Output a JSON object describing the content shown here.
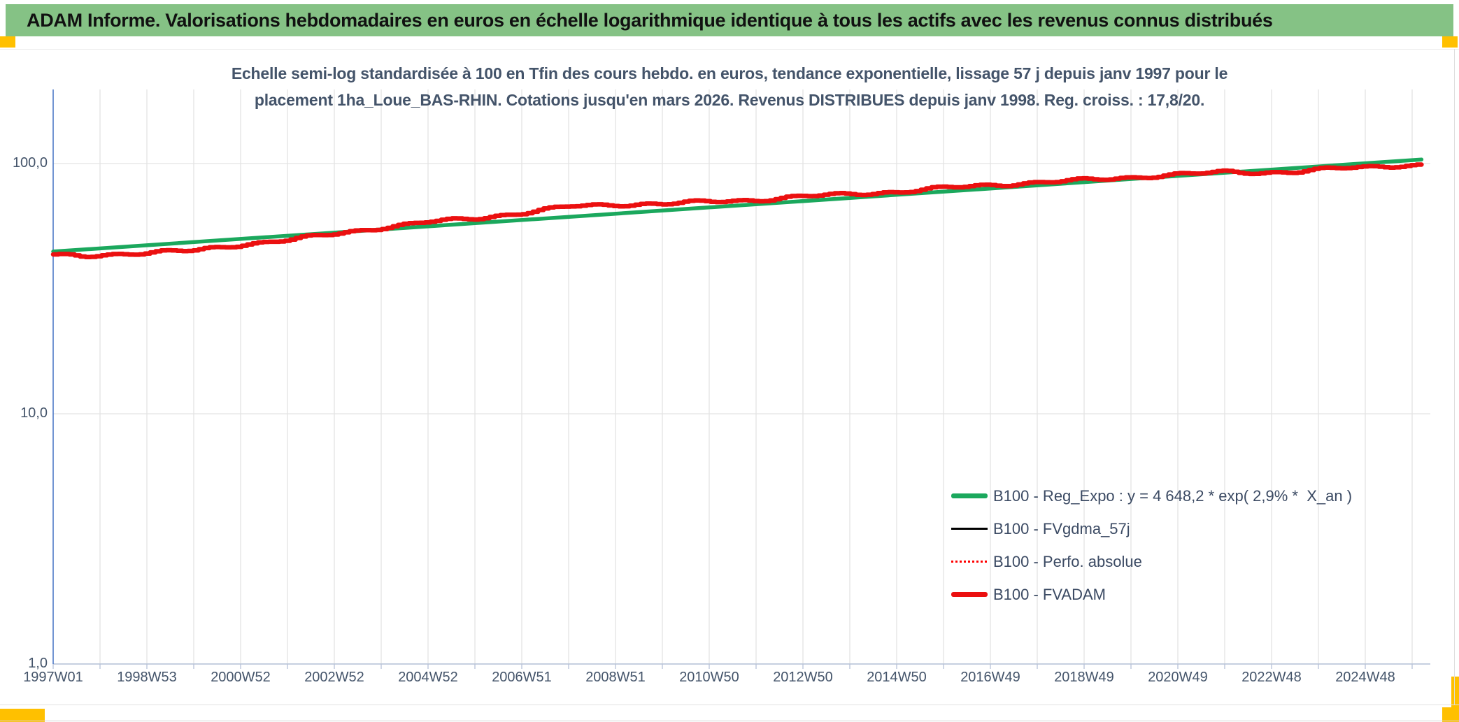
{
  "banner": {
    "title": "ADAM Informe. Valorisations hebdomadaires en euros en échelle logarithmique identique à tous les actifs avec les revenus connus distribués"
  },
  "chart": {
    "title_line1": "Echelle semi-log standardisée à 100 en Tfin des cours hebdo. en euros, tendance exponentielle, lissage 57 j depuis janv 1997 pour le",
    "title_line2": "placement 1ha_Loue_BAS-RHIN. Cotations jusqu'en mars 2026. Revenus DISTRIBUES depuis janv 1998. Reg. croiss. : 17,8/20.",
    "legend": [
      {
        "label": "B100 - Reg_Expo : y = 4 648,2 * exp( 2,9% *  X_an )",
        "color": "#1BA85D",
        "style": "thick-solid"
      },
      {
        "label": "B100 - FVgdma_57j",
        "color": "#000000",
        "style": "thin-solid"
      },
      {
        "label": "B100 - Perfo. absolue",
        "color": "#FF0000",
        "style": "thin-dotted"
      },
      {
        "label": "B100 - FVADAM",
        "color": "#EB1010",
        "style": "thick-solid"
      }
    ],
    "colors": {
      "banner_green": "#85C285",
      "accent_gold": "#FFC000",
      "text_blue_gray": "#44546A",
      "y_axis_line": "#4472C4",
      "x_axis_line": "#B6C1D8",
      "gridline": "#E3E3E3",
      "reg_expo_green": "#1BA85D",
      "fvadam_red": "#EB1010"
    }
  },
  "chart_data": {
    "type": "line",
    "title": "Echelle semi-log standardisée à 100 en Tfin des cours hebdo. en euros, tendance exponentielle, lissage 57 j depuis janv 1997 pour le placement 1ha_Loue_BAS-RHIN. Cotations jusqu'en mars 2026. Revenus DISTRIBUES depuis janv 1998. Reg. croiss. : 17,8/20.",
    "x_axis": {
      "type": "weekly-categories",
      "tick_labels": [
        "1997W01",
        "1998W53",
        "2000W52",
        "2002W52",
        "2004W52",
        "2006W51",
        "2008W51",
        "2010W50",
        "2012W50",
        "2014W50",
        "2016W49",
        "2018W49",
        "2020W49",
        "2022W48",
        "2024W48"
      ],
      "tick_years": [
        1997,
        1999,
        2001,
        2003,
        2005,
        2007,
        2009,
        2011,
        2013,
        2015,
        2017,
        2019,
        2021,
        2023,
        2025
      ],
      "span_years": [
        1997.0,
        2026.2
      ],
      "gridlines": "vertical, yearly"
    },
    "y_axis": {
      "scale": "log10",
      "ticks": [
        "1,0",
        "10,0",
        "100,0"
      ],
      "tick_values": [
        1,
        10,
        100
      ],
      "range": [
        1,
        200
      ],
      "gridlines": "horizontal, at decades"
    },
    "legend_position": "inside right, lower middle",
    "series": [
      {
        "name": "B100 - Reg_Expo : y = 4 648,2 * exp( 2,9% *  X_an )",
        "color": "#1BA85D",
        "line": "thick solid, straight in semi-log (exponential trend)",
        "years": [
          1997.0,
          2026.2
        ],
        "values": [
          44.5,
          103.8
        ]
      },
      {
        "name": "B100 - FVADAM",
        "color": "#EB1010",
        "line": "thick solid, weekly steps",
        "years": [
          1997,
          1997.6,
          1998,
          1999,
          2000,
          2001,
          2002,
          2003,
          2004,
          2005,
          2006,
          2007,
          2008,
          2009,
          2010,
          2011,
          2012,
          2013,
          2014,
          2015,
          2016,
          2017,
          2018,
          2019,
          2020,
          2021,
          2022,
          2022.8,
          2023.5,
          2024,
          2024.6,
          2025,
          2025.6,
          2026.2
        ],
        "values": [
          43.0,
          42.6,
          43.2,
          44.0,
          45.0,
          47.5,
          49.5,
          52.5,
          55.5,
          58.5,
          60.5,
          63.5,
          67.5,
          68.5,
          69.0,
          70.5,
          71.5,
          74.0,
          75.5,
          77.0,
          80.0,
          82.0,
          84.0,
          86.0,
          88.0,
          90.5,
          92.5,
          92.0,
          92.8,
          94.5,
          96.3,
          96.8,
          98.2,
          98.5
        ]
      },
      {
        "name": "B100 - FVgdma_57j",
        "color": "#000000",
        "line": "thin solid",
        "values_same_as": "B100 - FVADAM",
        "note": "visually hidden beneath the B100 - FVADAM curve"
      },
      {
        "name": "B100 - Perfo. absolue",
        "color": "#FF0000",
        "line": "thin dotted",
        "values_same_as": "B100 - FVADAM",
        "note": "visually hidden beneath the B100 - FVADAM curve"
      }
    ]
  }
}
